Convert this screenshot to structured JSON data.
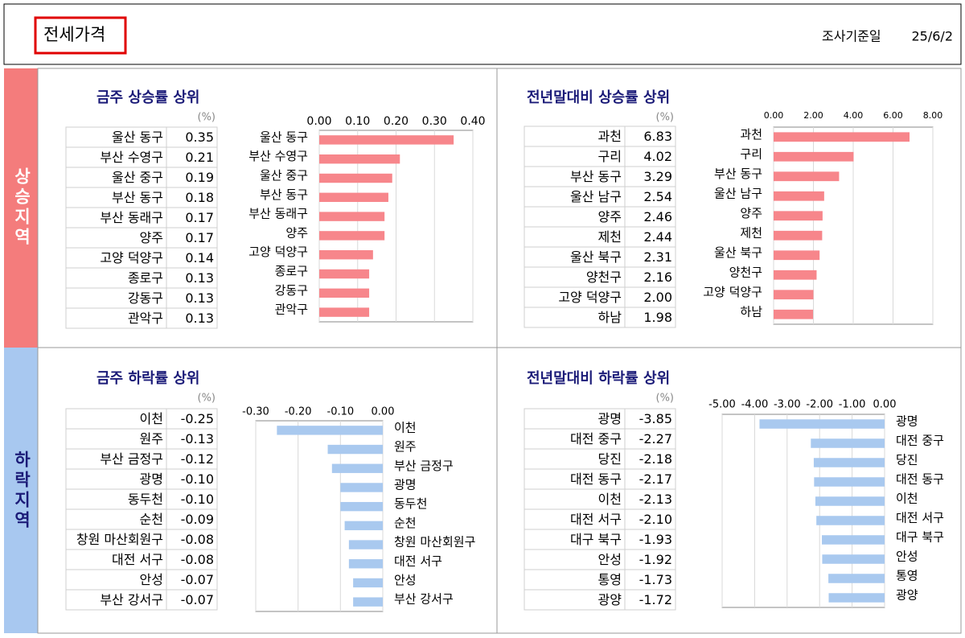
{
  "header": {
    "title": "전세가격",
    "survey_label": "조사기준일",
    "date": "25/6/2"
  },
  "sections": [
    {
      "label": "상승지역"
    },
    {
      "label": "하락지역"
    }
  ],
  "chart_data": [
    {
      "type": "bar",
      "orientation": "horizontal",
      "title": "금주 상승률 상위",
      "unit": "(%)",
      "categories": [
        "울산 동구",
        "부산 수영구",
        "울산 중구",
        "부산 동구",
        "부산 동래구",
        "양주",
        "고양 덕양구",
        "종로구",
        "강동구",
        "관악구"
      ],
      "values": [
        0.35,
        0.21,
        0.19,
        0.18,
        0.17,
        0.17,
        0.14,
        0.13,
        0.13,
        0.13
      ],
      "value_labels": [
        "0.35",
        "0.21",
        "0.19",
        "0.18",
        "0.17",
        "0.17",
        "0.14",
        "0.13",
        "0.13",
        "0.13"
      ],
      "color": "#f7868b",
      "xlim": [
        0,
        0.4
      ],
      "xticks": [
        {
          "value": 0,
          "label": "0.00"
        },
        {
          "value": 0.1,
          "label": "0.10"
        },
        {
          "value": 0.2,
          "label": "0.20"
        },
        {
          "value": 0.3,
          "label": "0.30"
        },
        {
          "value": 0.4,
          "label": "0.40"
        }
      ],
      "grid": true
    },
    {
      "type": "bar",
      "orientation": "horizontal",
      "title": "전년말대비 상승률 상위",
      "unit": "(%)",
      "categories": [
        "과천",
        "구리",
        "부산 동구",
        "울산 남구",
        "양주",
        "제천",
        "울산 북구",
        "양천구",
        "고양 덕양구",
        "하남"
      ],
      "values": [
        6.83,
        4.02,
        3.29,
        2.54,
        2.46,
        2.44,
        2.31,
        2.16,
        2.0,
        1.98
      ],
      "value_labels": [
        "6.83",
        "4.02",
        "3.29",
        "2.54",
        "2.46",
        "2.44",
        "2.31",
        "2.16",
        "2.00",
        "1.98"
      ],
      "color": "#f7868b",
      "xlim": [
        0,
        8
      ],
      "xticks": [
        {
          "value": 0,
          "label": "0.00"
        },
        {
          "value": 2,
          "label": "2.00"
        },
        {
          "value": 4,
          "label": "4.00"
        },
        {
          "value": 6,
          "label": "6.00"
        },
        {
          "value": 8,
          "label": "8.00"
        }
      ],
      "grid": true
    },
    {
      "type": "bar",
      "orientation": "horizontal",
      "title": "금주 하락률 상위",
      "unit": "(%)",
      "categories": [
        "이천",
        "원주",
        "부산 금정구",
        "광명",
        "동두천",
        "순천",
        "창원 마산회원구",
        "대전 서구",
        "안성",
        "부산 강서구"
      ],
      "values": [
        -0.25,
        -0.13,
        -0.12,
        -0.1,
        -0.1,
        -0.09,
        -0.08,
        -0.08,
        -0.07,
        -0.07
      ],
      "value_labels": [
        "-0.25",
        "-0.13",
        "-0.12",
        "-0.10",
        "-0.10",
        "-0.09",
        "-0.08",
        "-0.08",
        "-0.07",
        "-0.07"
      ],
      "color": "#a9c9ef",
      "xlim": [
        -0.3,
        0
      ],
      "xticks": [
        {
          "value": -0.3,
          "label": "-0.30"
        },
        {
          "value": -0.2,
          "label": "-0.20"
        },
        {
          "value": -0.1,
          "label": "-0.10"
        },
        {
          "value": 0,
          "label": "0.00"
        }
      ],
      "grid": true
    },
    {
      "type": "bar",
      "orientation": "horizontal",
      "title": "전년말대비 하락률 상위",
      "unit": "(%)",
      "categories": [
        "광명",
        "대전 중구",
        "당진",
        "대전 동구",
        "이천",
        "대전 서구",
        "대구 북구",
        "안성",
        "통영",
        "광양"
      ],
      "values": [
        -3.85,
        -2.27,
        -2.18,
        -2.17,
        -2.13,
        -2.1,
        -1.93,
        -1.92,
        -1.73,
        -1.72
      ],
      "value_labels": [
        "-3.85",
        "-2.27",
        "-2.18",
        "-2.17",
        "-2.13",
        "-2.10",
        "-1.93",
        "-1.92",
        "-1.73",
        "-1.72"
      ],
      "color": "#a9c9ef",
      "xlim": [
        -5,
        0
      ],
      "xticks": [
        {
          "value": -5,
          "label": "-5.00"
        },
        {
          "value": -4,
          "label": "-4.00"
        },
        {
          "value": -3,
          "label": "-3.00"
        },
        {
          "value": -2,
          "label": "-2.00"
        },
        {
          "value": -1,
          "label": "-1.00"
        },
        {
          "value": 0,
          "label": "0.00"
        }
      ],
      "grid": true
    }
  ]
}
